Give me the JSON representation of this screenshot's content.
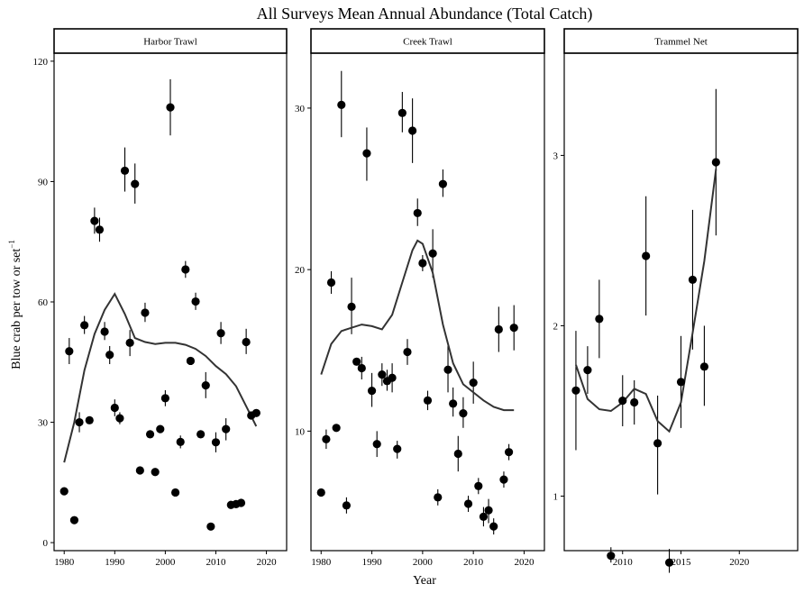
{
  "title": "All Surveys Mean Annual Abundance (Total Catch)",
  "xlabel": "Year",
  "ylabel": "Blue crab per tow or set",
  "ylabel_superscript": "−1",
  "colors": {
    "points": "#000000",
    "smooth": "#333333",
    "errorbars": "#000000",
    "frame": "#000000"
  },
  "chart_data": [
    {
      "type": "scatter",
      "panel": "Harbor Trawl",
      "xlim": [
        1978,
        2024
      ],
      "ylim": [
        -2,
        122
      ],
      "xticks": [
        1980,
        1990,
        2000,
        2010,
        2020
      ],
      "yticks": [
        0,
        30,
        60,
        90,
        120
      ],
      "points": [
        {
          "year": 1980,
          "mean": 12.8,
          "lo": 12.8,
          "hi": 12.8
        },
        {
          "year": 1981,
          "mean": 47.7,
          "lo": 44.5,
          "hi": 51.0
        },
        {
          "year": 1982,
          "mean": 5.6,
          "lo": 5.6,
          "hi": 5.6
        },
        {
          "year": 1983,
          "mean": 30.0,
          "lo": 27.5,
          "hi": 32.5
        },
        {
          "year": 1984,
          "mean": 54.2,
          "lo": 52.0,
          "hi": 56.5
        },
        {
          "year": 1985,
          "mean": 30.5,
          "lo": 30.5,
          "hi": 30.5
        },
        {
          "year": 1986,
          "mean": 80.2,
          "lo": 77.0,
          "hi": 83.5
        },
        {
          "year": 1987,
          "mean": 78.0,
          "lo": 75.0,
          "hi": 81.0
        },
        {
          "year": 1988,
          "mean": 52.6,
          "lo": 50.5,
          "hi": 55.0
        },
        {
          "year": 1989,
          "mean": 46.8,
          "lo": 44.5,
          "hi": 49.0
        },
        {
          "year": 1990,
          "mean": 33.6,
          "lo": 31.5,
          "hi": 35.7
        },
        {
          "year": 1991,
          "mean": 31.0,
          "lo": 29.5,
          "hi": 32.5
        },
        {
          "year": 1992,
          "mean": 92.7,
          "lo": 87.5,
          "hi": 98.5
        },
        {
          "year": 1993,
          "mean": 49.8,
          "lo": 46.5,
          "hi": 53.0
        },
        {
          "year": 1994,
          "mean": 89.4,
          "lo": 84.5,
          "hi": 94.5
        },
        {
          "year": 1995,
          "mean": 18.0,
          "lo": 18.0,
          "hi": 18.0
        },
        {
          "year": 1996,
          "mean": 57.3,
          "lo": 55.0,
          "hi": 59.8
        },
        {
          "year": 1997,
          "mean": 27.0,
          "lo": 27.0,
          "hi": 27.0
        },
        {
          "year": 1998,
          "mean": 17.6,
          "lo": 17.6,
          "hi": 17.6
        },
        {
          "year": 1999,
          "mean": 28.3,
          "lo": 28.3,
          "hi": 28.3
        },
        {
          "year": 2000,
          "mean": 36.0,
          "lo": 34.0,
          "hi": 38.0
        },
        {
          "year": 2001,
          "mean": 108.5,
          "lo": 101.5,
          "hi": 115.5
        },
        {
          "year": 2002,
          "mean": 12.5,
          "lo": 12.5,
          "hi": 12.5
        },
        {
          "year": 2003,
          "mean": 25.1,
          "lo": 23.5,
          "hi": 26.7
        },
        {
          "year": 2004,
          "mean": 68.1,
          "lo": 66.0,
          "hi": 70.2
        },
        {
          "year": 2005,
          "mean": 45.3,
          "lo": 45.3,
          "hi": 45.3
        },
        {
          "year": 2006,
          "mean": 60.1,
          "lo": 58.0,
          "hi": 62.3
        },
        {
          "year": 2007,
          "mean": 27.0,
          "lo": 27.0,
          "hi": 27.0
        },
        {
          "year": 2008,
          "mean": 39.2,
          "lo": 36.0,
          "hi": 42.5
        },
        {
          "year": 2009,
          "mean": 4.0,
          "lo": 4.0,
          "hi": 4.0
        },
        {
          "year": 2010,
          "mean": 25.0,
          "lo": 22.5,
          "hi": 27.5
        },
        {
          "year": 2011,
          "mean": 52.2,
          "lo": 49.5,
          "hi": 55.0
        },
        {
          "year": 2012,
          "mean": 28.3,
          "lo": 25.5,
          "hi": 31.0
        },
        {
          "year": 2013,
          "mean": 9.4,
          "lo": 9.4,
          "hi": 9.4
        },
        {
          "year": 2014,
          "mean": 9.6,
          "lo": 9.6,
          "hi": 9.6
        },
        {
          "year": 2015,
          "mean": 9.9,
          "lo": 9.9,
          "hi": 9.9
        },
        {
          "year": 2016,
          "mean": 50.0,
          "lo": 47.0,
          "hi": 53.3
        },
        {
          "year": 2017,
          "mean": 31.7,
          "lo": 31.7,
          "hi": 31.7
        },
        {
          "year": 2018,
          "mean": 32.3,
          "lo": 32.3,
          "hi": 32.3
        }
      ],
      "smooth": [
        {
          "year": 1980,
          "value": 20
        },
        {
          "year": 1982,
          "value": 30
        },
        {
          "year": 1984,
          "value": 43
        },
        {
          "year": 1986,
          "value": 52
        },
        {
          "year": 1988,
          "value": 58
        },
        {
          "year": 1990,
          "value": 62
        },
        {
          "year": 1992,
          "value": 57
        },
        {
          "year": 1994,
          "value": 51
        },
        {
          "year": 1996,
          "value": 50
        },
        {
          "year": 1998,
          "value": 49.5
        },
        {
          "year": 2000,
          "value": 49.8
        },
        {
          "year": 2002,
          "value": 49.8
        },
        {
          "year": 2004,
          "value": 49.3
        },
        {
          "year": 2006,
          "value": 48.3
        },
        {
          "year": 2008,
          "value": 46.5
        },
        {
          "year": 2010,
          "value": 44.0
        },
        {
          "year": 2012,
          "value": 42.0
        },
        {
          "year": 2014,
          "value": 39.0
        },
        {
          "year": 2016,
          "value": 34.0
        },
        {
          "year": 2018,
          "value": 29.0
        }
      ]
    },
    {
      "type": "scatter",
      "panel": "Creek Trawl",
      "xlim": [
        1978,
        2024
      ],
      "ylim": [
        2.6,
        33.4
      ],
      "xticks": [
        1980,
        1990,
        2000,
        2010,
        2020
      ],
      "yticks": [
        10,
        20,
        30
      ],
      "points": [
        {
          "year": 1980,
          "mean": 6.2,
          "lo": 6.2,
          "hi": 6.2
        },
        {
          "year": 1981,
          "mean": 9.5,
          "lo": 8.9,
          "hi": 10.1
        },
        {
          "year": 1982,
          "mean": 19.2,
          "lo": 18.5,
          "hi": 19.9
        },
        {
          "year": 1983,
          "mean": 10.2,
          "lo": 10.2,
          "hi": 10.2
        },
        {
          "year": 1984,
          "mean": 30.2,
          "lo": 28.2,
          "hi": 32.3
        },
        {
          "year": 1985,
          "mean": 5.4,
          "lo": 4.9,
          "hi": 5.9
        },
        {
          "year": 1986,
          "mean": 17.7,
          "lo": 16.0,
          "hi": 19.5
        },
        {
          "year": 1987,
          "mean": 14.3,
          "lo": 14.3,
          "hi": 14.3
        },
        {
          "year": 1988,
          "mean": 13.9,
          "lo": 13.2,
          "hi": 14.6
        },
        {
          "year": 1989,
          "mean": 27.2,
          "lo": 25.5,
          "hi": 28.8
        },
        {
          "year": 1990,
          "mean": 12.5,
          "lo": 11.5,
          "hi": 13.6
        },
        {
          "year": 1991,
          "mean": 9.2,
          "lo": 8.4,
          "hi": 10.0
        },
        {
          "year": 1992,
          "mean": 13.5,
          "lo": 12.8,
          "hi": 14.2
        },
        {
          "year": 1993,
          "mean": 13.1,
          "lo": 12.5,
          "hi": 13.8
        },
        {
          "year": 1994,
          "mean": 13.3,
          "lo": 12.4,
          "hi": 14.2
        },
        {
          "year": 1995,
          "mean": 8.9,
          "lo": 8.3,
          "hi": 9.4
        },
        {
          "year": 1996,
          "mean": 29.7,
          "lo": 28.5,
          "hi": 31.0
        },
        {
          "year": 1997,
          "mean": 14.9,
          "lo": 14.1,
          "hi": 15.7
        },
        {
          "year": 1998,
          "mean": 28.6,
          "lo": 26.6,
          "hi": 30.6
        },
        {
          "year": 1999,
          "mean": 23.5,
          "lo": 22.7,
          "hi": 24.4
        },
        {
          "year": 2000,
          "mean": 20.4,
          "lo": 19.9,
          "hi": 20.9
        },
        {
          "year": 2001,
          "mean": 11.9,
          "lo": 11.3,
          "hi": 12.5
        },
        {
          "year": 2002,
          "mean": 21.0,
          "lo": 19.5,
          "hi": 22.5
        },
        {
          "year": 2003,
          "mean": 5.9,
          "lo": 5.4,
          "hi": 6.4
        },
        {
          "year": 2004,
          "mean": 25.3,
          "lo": 24.5,
          "hi": 26.2
        },
        {
          "year": 2005,
          "mean": 13.8,
          "lo": 12.4,
          "hi": 15.3
        },
        {
          "year": 2006,
          "mean": 11.7,
          "lo": 10.9,
          "hi": 12.7
        },
        {
          "year": 2007,
          "mean": 8.6,
          "lo": 7.5,
          "hi": 9.7
        },
        {
          "year": 2008,
          "mean": 11.1,
          "lo": 10.2,
          "hi": 12.1
        },
        {
          "year": 2009,
          "mean": 5.5,
          "lo": 5.0,
          "hi": 6.0
        },
        {
          "year": 2010,
          "mean": 13.0,
          "lo": 11.7,
          "hi": 14.3
        },
        {
          "year": 2011,
          "mean": 6.6,
          "lo": 6.1,
          "hi": 7.1
        },
        {
          "year": 2012,
          "mean": 4.7,
          "lo": 4.1,
          "hi": 5.3
        },
        {
          "year": 2013,
          "mean": 5.1,
          "lo": 4.3,
          "hi": 5.8
        },
        {
          "year": 2014,
          "mean": 4.1,
          "lo": 3.6,
          "hi": 4.6
        },
        {
          "year": 2015,
          "mean": 16.3,
          "lo": 14.9,
          "hi": 17.7
        },
        {
          "year": 2016,
          "mean": 7.0,
          "lo": 6.5,
          "hi": 7.5
        },
        {
          "year": 2017,
          "mean": 8.7,
          "lo": 8.2,
          "hi": 9.2
        },
        {
          "year": 2018,
          "mean": 16.4,
          "lo": 15.0,
          "hi": 17.8
        }
      ],
      "smooth": [
        {
          "year": 1980,
          "value": 13.5
        },
        {
          "year": 1982,
          "value": 15.4
        },
        {
          "year": 1984,
          "value": 16.2
        },
        {
          "year": 1986,
          "value": 16.4
        },
        {
          "year": 1988,
          "value": 16.6
        },
        {
          "year": 1990,
          "value": 16.5
        },
        {
          "year": 1992,
          "value": 16.3
        },
        {
          "year": 1994,
          "value": 17.2
        },
        {
          "year": 1996,
          "value": 19.2
        },
        {
          "year": 1998,
          "value": 21.2
        },
        {
          "year": 1999,
          "value": 21.8
        },
        {
          "year": 2000,
          "value": 21.6
        },
        {
          "year": 2002,
          "value": 19.8
        },
        {
          "year": 2004,
          "value": 16.6
        },
        {
          "year": 2006,
          "value": 14.2
        },
        {
          "year": 2008,
          "value": 12.9
        },
        {
          "year": 2010,
          "value": 12.4
        },
        {
          "year": 2012,
          "value": 11.9
        },
        {
          "year": 2014,
          "value": 11.5
        },
        {
          "year": 2016,
          "value": 11.3
        },
        {
          "year": 2018,
          "value": 11.3
        }
      ]
    },
    {
      "type": "scatter",
      "panel": "Trammel Net",
      "xlim": [
        2005,
        2025
      ],
      "ylim": [
        0.68,
        3.6
      ],
      "xticks": [
        2010,
        2015,
        2020
      ],
      "yticks": [
        1,
        2,
        3
      ],
      "points": [
        {
          "year": 2006,
          "mean": 1.62,
          "lo": 1.27,
          "hi": 1.97
        },
        {
          "year": 2007,
          "mean": 1.74,
          "lo": 1.6,
          "hi": 1.88
        },
        {
          "year": 2008,
          "mean": 2.04,
          "lo": 1.81,
          "hi": 2.27
        },
        {
          "year": 2009,
          "mean": 0.65,
          "lo": 0.61,
          "hi": 0.7
        },
        {
          "year": 2010,
          "mean": 1.56,
          "lo": 1.41,
          "hi": 1.71
        },
        {
          "year": 2011,
          "mean": 1.55,
          "lo": 1.42,
          "hi": 1.68
        },
        {
          "year": 2012,
          "mean": 2.41,
          "lo": 2.06,
          "hi": 2.76
        },
        {
          "year": 2013,
          "mean": 1.31,
          "lo": 1.01,
          "hi": 1.59
        },
        {
          "year": 2014,
          "mean": 0.61,
          "lo": 0.55,
          "hi": 0.69
        },
        {
          "year": 2015,
          "mean": 1.67,
          "lo": 1.4,
          "hi": 1.94
        },
        {
          "year": 2016,
          "mean": 2.27,
          "lo": 1.86,
          "hi": 2.68
        },
        {
          "year": 2017,
          "mean": 1.76,
          "lo": 1.53,
          "hi": 2.0
        },
        {
          "year": 2018,
          "mean": 2.96,
          "lo": 2.53,
          "hi": 3.39
        }
      ],
      "smooth": [
        {
          "year": 2006,
          "value": 1.77
        },
        {
          "year": 2007,
          "value": 1.57
        },
        {
          "year": 2008,
          "value": 1.51
        },
        {
          "year": 2009,
          "value": 1.5
        },
        {
          "year": 2010,
          "value": 1.55
        },
        {
          "year": 2011,
          "value": 1.63
        },
        {
          "year": 2012,
          "value": 1.6
        },
        {
          "year": 2013,
          "value": 1.44
        },
        {
          "year": 2014,
          "value": 1.38
        },
        {
          "year": 2015,
          "value": 1.55
        },
        {
          "year": 2016,
          "value": 1.96
        },
        {
          "year": 2017,
          "value": 2.38
        },
        {
          "year": 2018,
          "value": 2.92
        }
      ]
    }
  ]
}
